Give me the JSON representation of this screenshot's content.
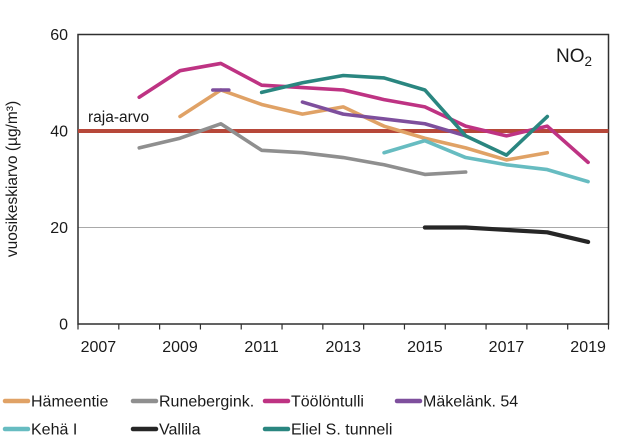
{
  "figure": {
    "y_axis_title": "vuosikeskiarvo (µg/m³)",
    "limit_label": "raja-arvo",
    "no2_base": "NO",
    "no2_sub": "2"
  },
  "chart_data": {
    "type": "line",
    "title": "",
    "xlabel": "",
    "ylabel": "vuosikeskiarvo (µg/m³)",
    "annotation": "NO₂",
    "ylim": [
      0,
      60
    ],
    "xlim": [
      2006.5,
      2019.5
    ],
    "years": [
      2007,
      2008,
      2009,
      2010,
      2011,
      2012,
      2013,
      2014,
      2015,
      2016,
      2017,
      2018,
      2019
    ],
    "x_ticks": [
      2007,
      2009,
      2011,
      2013,
      2015,
      2017,
      2019
    ],
    "y_ticks": [
      0,
      20,
      40,
      60
    ],
    "grid_y": [
      20,
      40
    ],
    "legend_position": "bottom",
    "reference_line": {
      "label": "raja-arvo",
      "value": 40,
      "color": "#b7483a"
    },
    "series": [
      {
        "name": "Hämeentie",
        "color": "#e0a266",
        "values": [
          null,
          null,
          43,
          48.5,
          45.5,
          43.5,
          45,
          41,
          38.5,
          36.5,
          34,
          35.5,
          null
        ]
      },
      {
        "name": "Runebergink.",
        "color": "#8f8f8f",
        "values": [
          null,
          36.5,
          38.5,
          41.5,
          36,
          35.5,
          34.5,
          33,
          31,
          31.5,
          null,
          null,
          null
        ]
      },
      {
        "name": "Töölöntulli",
        "color": "#be3383",
        "values": [
          null,
          47,
          52.5,
          54,
          49.5,
          49,
          48.5,
          46.5,
          45,
          41,
          39,
          41,
          33.5
        ]
      },
      {
        "name": "Mäkelänk. 54",
        "color": "#7e4f9d",
        "values": [
          null,
          null,
          null,
          48.5,
          null,
          46,
          43.5,
          42.5,
          41.5,
          39,
          null,
          null,
          null
        ]
      },
      {
        "name": "Kehä I",
        "color": "#67bcc1",
        "values": [
          null,
          null,
          null,
          null,
          null,
          null,
          null,
          35.5,
          38,
          34.5,
          33,
          32,
          29.5
        ]
      },
      {
        "name": "Vallila",
        "color": "#262626",
        "values": [
          null,
          null,
          null,
          null,
          null,
          null,
          null,
          null,
          20,
          20,
          19.5,
          19,
          17
        ]
      },
      {
        "name": "Eliel S. tunneli",
        "color": "#2a8680",
        "values": [
          null,
          null,
          null,
          null,
          48,
          50,
          51.5,
          51,
          48.5,
          39,
          35,
          43,
          null
        ]
      }
    ]
  }
}
